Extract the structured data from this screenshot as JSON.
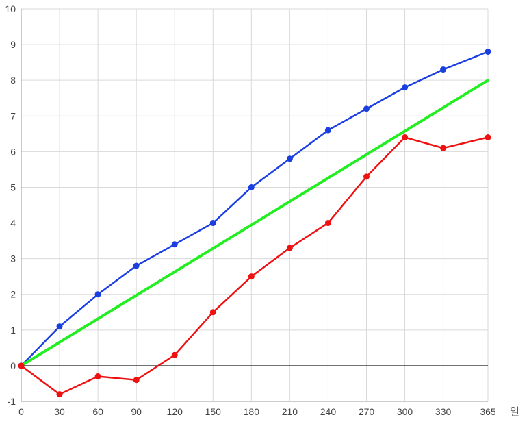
{
  "chart_data": {
    "type": "line",
    "title": "",
    "xlabel": "",
    "ylabel": "",
    "x_unit": "일",
    "x": [
      0,
      30,
      60,
      90,
      120,
      150,
      180,
      210,
      240,
      270,
      300,
      330,
      365
    ],
    "x_ticks": [
      "0",
      "30",
      "60",
      "90",
      "120",
      "150",
      "180",
      "210",
      "240",
      "270",
      "300",
      "330",
      "365"
    ],
    "y_ticks": [
      "-1",
      "0",
      "1",
      "2",
      "3",
      "4",
      "5",
      "6",
      "7",
      "8",
      "9",
      "10"
    ],
    "ylim": [
      -1,
      10
    ],
    "grid": true,
    "zero_line": true,
    "series": [
      {
        "color": "#1a3fe0",
        "markers": true,
        "values": [
          0,
          1.1,
          2.0,
          2.8,
          3.4,
          4.0,
          5.0,
          5.8,
          6.6,
          7.2,
          7.8,
          8.3,
          8.8
        ]
      },
      {
        "color": "#22ee22",
        "markers": false,
        "x": [
          0,
          365
        ],
        "values": [
          0,
          8.0
        ]
      },
      {
        "color": "#ee1111",
        "markers": true,
        "values": [
          0,
          -0.8,
          -0.3,
          -0.4,
          0.3,
          1.5,
          2.5,
          3.3,
          4.0,
          5.3,
          6.4,
          6.1,
          6.4
        ]
      }
    ]
  }
}
